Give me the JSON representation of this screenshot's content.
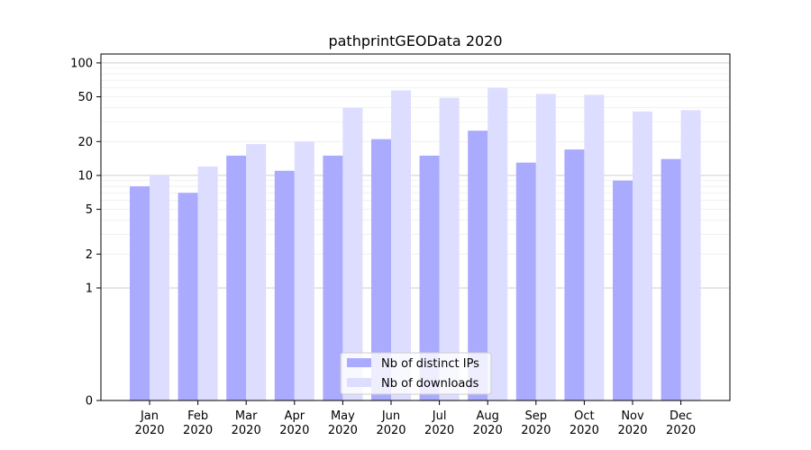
{
  "chart_data": {
    "type": "bar",
    "title": "pathprintGEOData 2020",
    "xlabel": "",
    "ylabel": "",
    "yscale": "symlog",
    "ylim": [
      0,
      120
    ],
    "yticks": [
      0,
      1,
      2,
      5,
      10,
      20,
      50,
      100
    ],
    "grid": true,
    "legend_position": "bottom-center",
    "categories": [
      "Jan\n2020",
      "Feb\n2020",
      "Mar\n2020",
      "Apr\n2020",
      "May\n2020",
      "Jun\n2020",
      "Jul\n2020",
      "Aug\n2020",
      "Sep\n2020",
      "Oct\n2020",
      "Nov\n2020",
      "Dec\n2020"
    ],
    "series": [
      {
        "name": "Nb of distinct IPs",
        "color": "#aaaaff",
        "values": [
          8,
          7,
          15,
          11,
          15,
          21,
          15,
          25,
          13,
          17,
          9,
          14
        ]
      },
      {
        "name": "Nb of downloads",
        "color": "#ddddff",
        "values": [
          10,
          12,
          19,
          20,
          40,
          57,
          49,
          60,
          53,
          52,
          37,
          38
        ]
      }
    ]
  }
}
